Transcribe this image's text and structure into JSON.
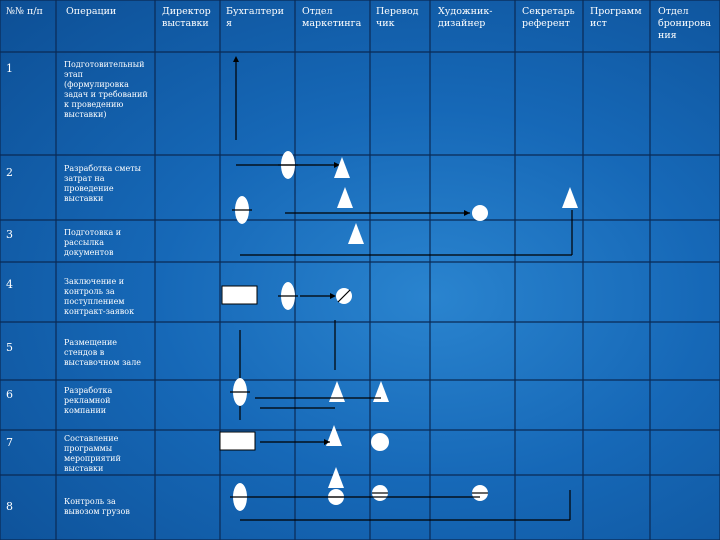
{
  "headers": [
    "№№ п/п",
    "Операции",
    "Директор выставки",
    "Бухгалтери я",
    "Отдел маркетинга",
    "Перевод чик",
    "Художник-дизайнер",
    "Секретарь референт",
    "Программ ист",
    "Отдел бронирова ния"
  ],
  "rows": [
    {
      "num": "1",
      "operation": "Подготовительный этап (формулировка задач и требований к проведению выставки)"
    },
    {
      "num": "2",
      "operation": "Разработка сметы затрат на проведение выставки"
    },
    {
      "num": "3",
      "operation": "Подготовка и рассылка документов"
    },
    {
      "num": "4",
      "operation": "Заключение и контроль за поступлением контракт-заявок"
    },
    {
      "num": "5",
      "operation": "Размещение стендов в выставочном зале"
    },
    {
      "num": "6",
      "operation": "Разработка рекламной компании"
    },
    {
      "num": "7",
      "operation": "Составление программы мероприятий выставки"
    },
    {
      "num": "8",
      "operation": "Контроль за вывозом грузов"
    }
  ],
  "colors": {
    "background": "#1668b7",
    "grid": "#0a2a55",
    "text": "#ffffff",
    "symbol_fill": "#ffffff",
    "connector": "#000000"
  }
}
